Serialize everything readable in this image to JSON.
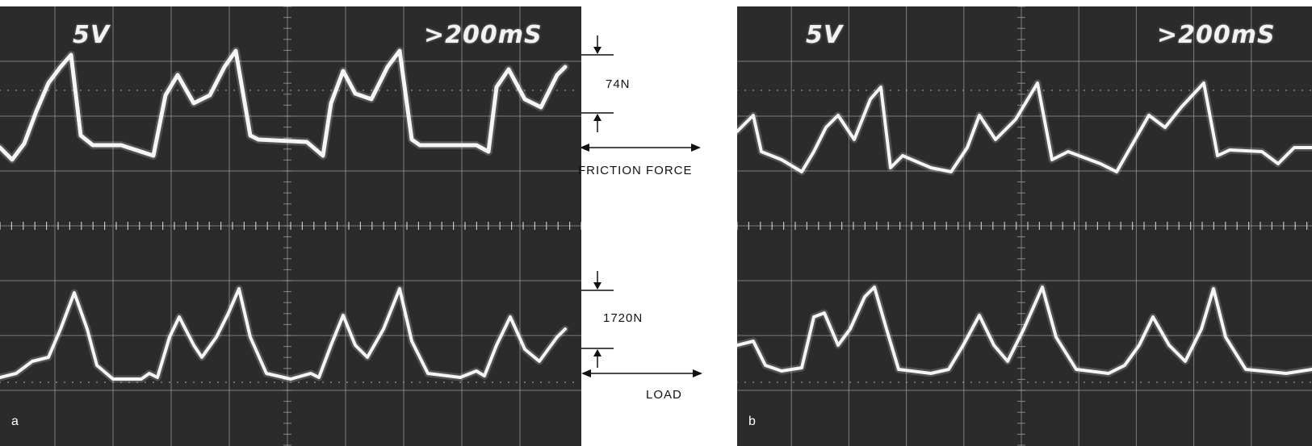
{
  "panels": [
    {
      "letter": "a",
      "volts_label": "5V",
      "time_label": ">200mS"
    },
    {
      "letter": "b",
      "volts_label": "5V",
      "time_label": ">200mS"
    }
  ],
  "annotations": {
    "friction_scale": "74N",
    "friction_label": "FRICTION FORCE",
    "load_scale": "1720N",
    "load_label": "LOAD"
  }
}
